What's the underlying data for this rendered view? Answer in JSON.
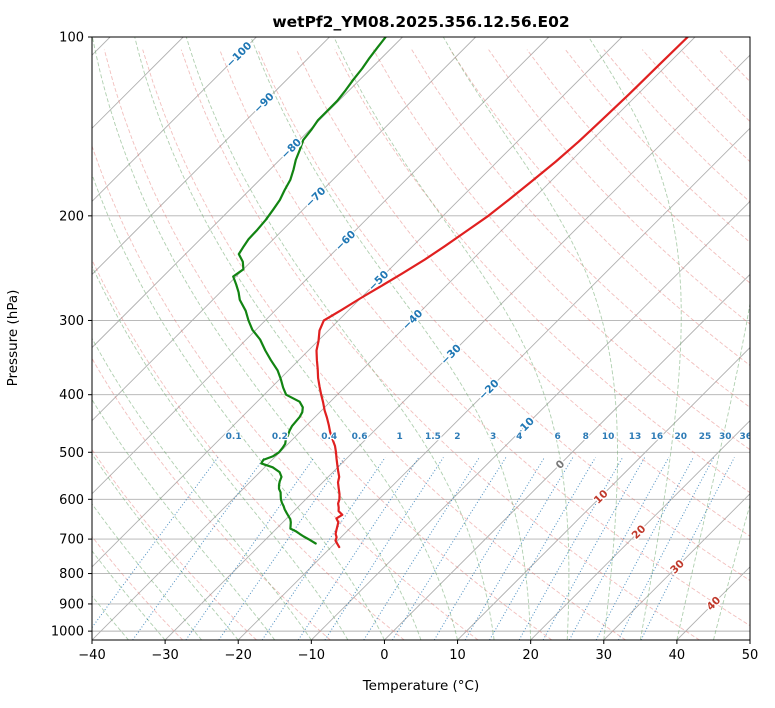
{
  "title": "wetPf2_YM08.2025.356.12.56.E02",
  "chart_data": {
    "type": "skewt-log-p",
    "title": "wetPf2_YM08.2025.356.12.56.E02",
    "xlabel": "Temperature (°C)",
    "ylabel": "Pressure (hPa)",
    "xlim": [
      -40,
      50
    ],
    "plim_hpa": [
      100,
      1035
    ],
    "skew_deg": 45,
    "x_ticks": [
      -40,
      -30,
      -20,
      -10,
      0,
      10,
      20,
      30,
      40,
      50
    ],
    "pressure_ticks": [
      100,
      200,
      300,
      400,
      500,
      600,
      700,
      800,
      900,
      1000
    ],
    "isotherm_step_c": 10,
    "isotherm_label_positions": [
      {
        "t": -100,
        "p": 107
      },
      {
        "t": -90,
        "p": 129
      },
      {
        "t": -80,
        "p": 154
      },
      {
        "t": -70,
        "p": 186
      },
      {
        "t": -60,
        "p": 220
      },
      {
        "t": -50,
        "p": 257
      },
      {
        "t": -40,
        "p": 299
      },
      {
        "t": -30,
        "p": 342
      },
      {
        "t": -20,
        "p": 392
      },
      {
        "t": -10,
        "p": 454
      },
      {
        "t": 0,
        "p": 524
      },
      {
        "t": 10,
        "p": 594
      },
      {
        "t": 20,
        "p": 681
      },
      {
        "t": 30,
        "p": 779
      },
      {
        "t": 40,
        "p": 898
      }
    ],
    "dry_adiabats_theta_c": {
      "start": -30,
      "end": 200,
      "step": 10
    },
    "moist_adiabats_start_c": {
      "start": -40,
      "end": 45,
      "step": 5
    },
    "mixing_ratio_lines_g_kg": [
      0.1,
      0.2,
      0.4,
      0.6,
      1,
      1.5,
      2,
      3,
      4,
      6,
      8,
      10,
      13,
      16,
      20,
      25,
      30,
      36
    ],
    "mixing_ratio_label_pressure_hpa": 470,
    "colors": {
      "temperature": "#e02020",
      "dewpoint": "#128412",
      "grid": "#b0b0b0",
      "dry_adiabat": "#e2726e",
      "moist_adiabat": "#6fa86f",
      "mixing_ratio": "#2d7bb6",
      "isotherm_label_negative": "#1f77b4",
      "isotherm_label_zero": "#777777",
      "isotherm_label_positive": "#c0392b",
      "axis": "#000000"
    },
    "temperature_profile": {
      "pressure_hpa": [
        722,
        713,
        704,
        695,
        686,
        676,
        666,
        656,
        646,
        637,
        628,
        619,
        610,
        600,
        588,
        575,
        562,
        550,
        537,
        525,
        512,
        500,
        488,
        475,
        462,
        450,
        437,
        425,
        412,
        400,
        388,
        375,
        362,
        350,
        337,
        325,
        312,
        300,
        288,
        275,
        262,
        250,
        237,
        225,
        212,
        200,
        188,
        175,
        162,
        150,
        138,
        125,
        112,
        100
      ],
      "temp_c": [
        -18.9,
        -19.6,
        -20.3,
        -20.6,
        -21.2,
        -21.6,
        -22.0,
        -22.4,
        -23.2,
        -22.9,
        -23.9,
        -24.4,
        -25.0,
        -25.4,
        -26.1,
        -27.0,
        -27.9,
        -28.5,
        -29.5,
        -30.4,
        -31.4,
        -32.3,
        -33.3,
        -34.6,
        -35.9,
        -37.0,
        -38.3,
        -39.6,
        -40.9,
        -42.2,
        -43.5,
        -44.9,
        -46.2,
        -47.5,
        -48.9,
        -49.9,
        -51.2,
        -52.0,
        -51.0,
        -50.0,
        -48.8,
        -47.7,
        -46.5,
        -45.6,
        -44.7,
        -43.8,
        -43.2,
        -42.6,
        -42.0,
        -41.6,
        -41.4,
        -41.2,
        -41.1,
        -41.0
      ]
    },
    "dewpoint_profile": {
      "pressure_hpa": [
        712,
        706,
        700,
        693,
        686,
        679,
        672,
        664,
        656,
        648,
        640,
        632,
        624,
        616,
        608,
        600,
        592,
        584,
        576,
        568,
        560,
        550,
        540,
        530,
        522,
        515,
        508,
        500,
        492,
        484,
        476,
        468,
        460,
        452,
        444,
        436,
        428,
        420,
        411,
        400,
        389,
        377,
        364,
        350,
        337,
        323,
        311,
        300,
        289,
        277,
        269,
        261,
        253,
        246,
        239,
        232,
        225,
        219,
        211,
        203,
        195,
        188,
        181,
        174,
        167,
        161,
        155,
        149,
        143,
        138,
        133,
        128,
        123,
        118,
        113,
        109,
        104,
        100
      ],
      "temp_c": [
        -22.6,
        -23.4,
        -24.2,
        -25.2,
        -26.1,
        -27.0,
        -28.1,
        -28.5,
        -28.9,
        -29.4,
        -30.1,
        -30.8,
        -31.5,
        -32.1,
        -32.8,
        -33.4,
        -33.9,
        -34.4,
        -35.1,
        -35.6,
        -36.0,
        -36.4,
        -37.3,
        -38.9,
        -41.0,
        -41.2,
        -40.4,
        -40.1,
        -40.2,
        -40.4,
        -40.9,
        -41.2,
        -41.6,
        -41.9,
        -42.0,
        -42.1,
        -42.4,
        -43.0,
        -44.2,
        -47.0,
        -48.4,
        -49.8,
        -51.5,
        -53.8,
        -55.9,
        -58.1,
        -60.5,
        -62.3,
        -64.0,
        -66.3,
        -67.5,
        -68.9,
        -70.4,
        -70.0,
        -71.1,
        -72.7,
        -73.1,
        -73.4,
        -73.5,
        -73.7,
        -74.1,
        -74.5,
        -75.2,
        -75.8,
        -76.8,
        -77.8,
        -78.6,
        -79.5,
        -79.8,
        -80.2,
        -80.2,
        -80.2,
        -80.5,
        -80.9,
        -81.2,
        -81.6,
        -82.0,
        -82.3
      ]
    }
  }
}
